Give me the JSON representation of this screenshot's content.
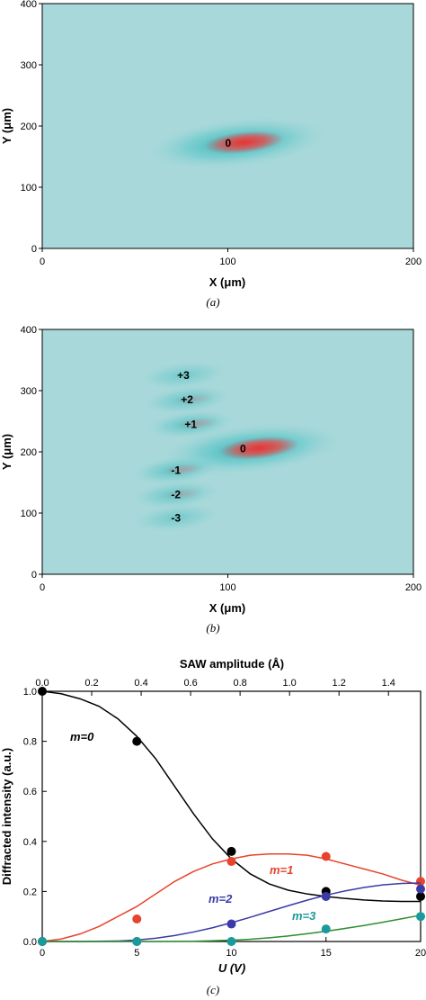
{
  "chart_data": [
    {
      "type": "heatmap",
      "panel": "a",
      "caption": "(a)",
      "xlabel": "X (μm)",
      "ylabel": "Y (μm)",
      "xlim": [
        0,
        200
      ],
      "ylim": [
        0,
        400
      ],
      "xticks": [
        "0",
        "100",
        "200"
      ],
      "yticks": [
        "0",
        "100",
        "200",
        "300",
        "400"
      ],
      "background_color": "#a8d8da",
      "halo_color": "#2fb8b8",
      "peak_color": "#e83838",
      "spots": [
        {
          "label": "0",
          "x": 105,
          "y": 172,
          "intensity": 1.0
        }
      ]
    },
    {
      "type": "heatmap",
      "panel": "b",
      "caption": "(b)",
      "xlabel": "X (μm)",
      "ylabel": "Y (μm)",
      "xlim": [
        0,
        200
      ],
      "ylim": [
        0,
        400
      ],
      "xticks": [
        "0",
        "100",
        "200"
      ],
      "yticks": [
        "0",
        "100",
        "200",
        "300",
        "400"
      ],
      "background_color": "#a8d8da",
      "spots": [
        {
          "label": "0",
          "x": 113,
          "y": 205,
          "intensity": 1.0
        },
        {
          "label": "+1",
          "x": 80,
          "y": 245,
          "intensity": 0.45
        },
        {
          "label": "+2",
          "x": 78,
          "y": 285,
          "intensity": 0.3
        },
        {
          "label": "+3",
          "x": 76,
          "y": 325,
          "intensity": 0.12
        },
        {
          "label": "-1",
          "x": 72,
          "y": 170,
          "intensity": 0.45
        },
        {
          "label": "-2",
          "x": 72,
          "y": 130,
          "intensity": 0.3
        },
        {
          "label": "-3",
          "x": 72,
          "y": 92,
          "intensity": 0.12
        }
      ]
    },
    {
      "type": "scatter",
      "panel": "c",
      "caption": "(c)",
      "xlabel": "U (V)",
      "ylabel": "Diffracted intensity (a.u.)",
      "top_xlabel": "SAW amplitude (Å)",
      "xlim": [
        0,
        20
      ],
      "ylim": [
        0,
        1.0
      ],
      "top_xlim": [
        0,
        1.53
      ],
      "xticks": [
        "0",
        "5",
        "10",
        "15",
        "20"
      ],
      "yticks": [
        "0.0",
        "0.2",
        "0.4",
        "0.6",
        "0.8",
        "1.0"
      ],
      "top_xticks": [
        "0.0",
        "0.2",
        "0.4",
        "0.6",
        "0.8",
        "1.0",
        "1.2",
        "1.4"
      ],
      "series": [
        {
          "name": "m=0",
          "color": "#000000",
          "x": [
            0,
            5,
            10,
            15,
            20
          ],
          "y": [
            1.0,
            0.8,
            0.36,
            0.2,
            0.18
          ],
          "fit_x": [
            0,
            1,
            2,
            3,
            4,
            5,
            6,
            7,
            8,
            9,
            10,
            11,
            12,
            13,
            14,
            15,
            16,
            17,
            18,
            19,
            20
          ],
          "fit_y": [
            1.0,
            0.99,
            0.97,
            0.94,
            0.89,
            0.82,
            0.73,
            0.62,
            0.51,
            0.41,
            0.33,
            0.27,
            0.23,
            0.205,
            0.19,
            0.18,
            0.172,
            0.166,
            0.162,
            0.16,
            0.16
          ]
        },
        {
          "name": "m=1",
          "color": "#e8432b",
          "x": [
            0,
            5,
            10,
            15,
            20
          ],
          "y": [
            0.0,
            0.09,
            0.32,
            0.34,
            0.24
          ],
          "fit_x": [
            0,
            1,
            2,
            3,
            4,
            5,
            6,
            7,
            8,
            9,
            10,
            11,
            12,
            13,
            14,
            15,
            16,
            17,
            18,
            19,
            20
          ],
          "fit_y": [
            0.0,
            0.01,
            0.03,
            0.06,
            0.1,
            0.14,
            0.19,
            0.24,
            0.28,
            0.31,
            0.33,
            0.345,
            0.35,
            0.35,
            0.345,
            0.33,
            0.31,
            0.29,
            0.27,
            0.245,
            0.225
          ]
        },
        {
          "name": "m=2",
          "color": "#3a3aa8",
          "x": [
            0,
            5,
            10,
            15,
            20
          ],
          "y": [
            0.0,
            0.0,
            0.07,
            0.18,
            0.21
          ],
          "fit_x": [
            0,
            2,
            4,
            5,
            6,
            7,
            8,
            9,
            10,
            11,
            12,
            13,
            14,
            15,
            16,
            17,
            18,
            19,
            20
          ],
          "fit_y": [
            0.0,
            0.0,
            0.002,
            0.006,
            0.013,
            0.024,
            0.038,
            0.055,
            0.075,
            0.097,
            0.12,
            0.143,
            0.165,
            0.185,
            0.202,
            0.216,
            0.226,
            0.232,
            0.234
          ]
        },
        {
          "name": "m=3",
          "color": "#1a9a9a",
          "x": [
            0,
            5,
            10,
            15,
            20
          ],
          "y": [
            0.0,
            0.0,
            0.0,
            0.05,
            0.1
          ],
          "fit_x": [
            0,
            2,
            4,
            6,
            8,
            10,
            11,
            12,
            13,
            14,
            15,
            16,
            17,
            18,
            19,
            20
          ],
          "fit_y": [
            0.0,
            0.0,
            0.0,
            0.0,
            0.001,
            0.005,
            0.009,
            0.015,
            0.022,
            0.031,
            0.041,
            0.052,
            0.064,
            0.077,
            0.091,
            0.105
          ],
          "fit_color": "#2e8f2e"
        }
      ]
    }
  ]
}
